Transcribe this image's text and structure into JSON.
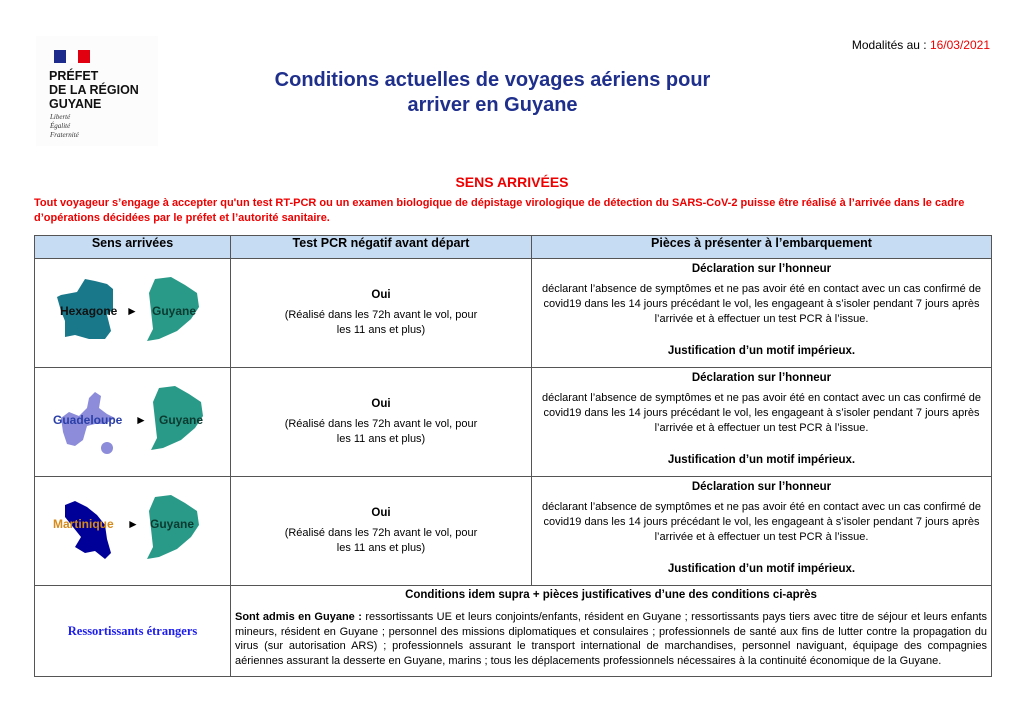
{
  "logo": {
    "line1": "PRÉFET",
    "line2": "DE LA RÉGION",
    "line3": "GUYANE",
    "motto": [
      "Liberté",
      "Égalité",
      "Fraternité"
    ]
  },
  "header": {
    "modalites_label": "Modalités au : ",
    "date": "16/03/2021",
    "title_line1": "Conditions actuelles de voyages aériens pour",
    "title_line2": "arriver en Guyane"
  },
  "section_title": "SENS ARRIVÉES",
  "intro": "Tout voyageur s’engage à accepter qu'un test RT-PCR ou un examen biologique de dépistage virologique de détection du SARS-CoV-2 puisse être réalisé à l’arrivée dans le cadre d’opérations décidées par le préfet et l’autorité sanitaire.",
  "table": {
    "headers": [
      "Sens arrivées",
      "Test PCR négatif avant départ",
      "Pièces à présenter à l’embarquement"
    ],
    "rows": [
      {
        "from": "Hexagone",
        "to": "Guyane",
        "arrow": "►",
        "pcr": "Oui",
        "pcr_detail": "(Réalisé dans les 72h avant le vol, pour les 11 ans et plus)",
        "decl_title": "Déclaration sur l’honneur",
        "decl_text": "déclarant l’absence de symptômes et ne pas avoir été en contact avec un cas confirmé de covid19 dans les 14 jours précédant le vol, les engageant à s’isoler pendant 7 jours après l’arrivée et à effectuer un test PCR à l’issue.",
        "justif": "Justification d’un motif impérieux."
      },
      {
        "from": "Guadeloupe",
        "to": "Guyane",
        "arrow": "►",
        "pcr": "Oui",
        "pcr_detail": "(Réalisé dans les 72h avant le vol, pour les 11 ans et plus)",
        "decl_title": "Déclaration sur l’honneur",
        "decl_text": "déclarant l’absence de symptômes et ne pas avoir été en contact avec un cas confirmé de covid19 dans les 14 jours précédant le vol, les engageant à s’isoler pendant 7 jours après l’arrivée et à effectuer un test PCR à l’issue.",
        "justif": "Justification d’un motif impérieux."
      },
      {
        "from": "Martinique",
        "to": "Guyane",
        "arrow": "►",
        "pcr": "Oui",
        "pcr_detail": "(Réalisé dans les 72h avant le vol, pour les 11 ans et plus)",
        "decl_title": "Déclaration sur l’honneur",
        "decl_text": "déclarant l’absence de symptômes et ne pas avoir été en contact avec un cas confirmé de covid19 dans les 14 jours précédant le vol, les engageant à s’isoler pendant 7 jours après l’arrivée et à effectuer un test PCR à l’issue.",
        "justif": "Justification d’un motif impérieux."
      }
    ],
    "foreign": {
      "label": "Ressortissants étrangers",
      "title": "Conditions idem supra + pièces justificatives d’une des conditions ci-après",
      "lead": "Sont admis en Guyane :",
      "text": " ressortissants UE et leurs conjoints/enfants, résident en Guyane ; ressortissants pays tiers avec titre de séjour et leurs enfants mineurs, résident en Guyane ; personnel des missions diplomatiques et consulaires ; professionnels de santé aux fins de lutter contre la propagation du virus (sur autorisation ARS) ; professionnels assurant le transport international de marchandises, personnel naviguant, équipage des compagnies aériennes assurant la desserte en Guyane, marins ; tous les déplacements professionnels nécessaires à la continuité économique de la Guyane."
    }
  },
  "colors": {
    "title": "#1f2f8c",
    "red": "#e00000",
    "header_bg": "#c6dcf3",
    "hexagone": "#19788a",
    "guyane": "#2a9a88",
    "guadeloupe": "#8c8cda",
    "martinique": "#000099",
    "martinique_label": "#d58a1c",
    "guadeloupe_label": "#2b3fa8"
  }
}
